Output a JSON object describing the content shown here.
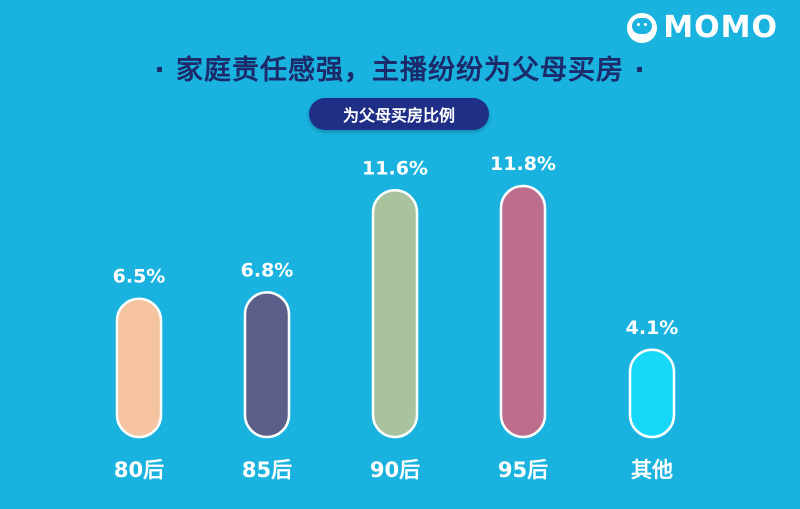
{
  "brand": {
    "logo_text": "MOMO",
    "logo_icon": "speech-bubble-face-icon"
  },
  "header": {
    "title": "· 家庭责任感强，主播纷纷为父母买房 ·",
    "badge": "为父母买房比例"
  },
  "chart_data": {
    "type": "bar",
    "categories": [
      "80后",
      "85后",
      "90后",
      "95后",
      "其他"
    ],
    "values": [
      6.5,
      6.8,
      11.6,
      11.8,
      4.1
    ],
    "value_labels": [
      "6.5%",
      "6.8%",
      "11.6%",
      "11.8%",
      "4.1%"
    ],
    "unit": "%",
    "colors": [
      "#f5c3a0",
      "#5a5e88",
      "#a8c39e",
      "#bd6e8c",
      "#18d8f8"
    ],
    "grid": false,
    "legend": "none",
    "ylim": [
      0,
      11.8
    ]
  }
}
